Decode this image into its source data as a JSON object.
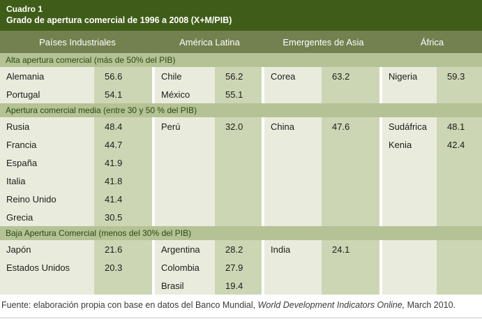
{
  "table_label": "Cuadro 1",
  "colors": {
    "title_band": "#3f5d18",
    "column_header": "#72814f",
    "section_band": "#b4c295",
    "name_cell": "#e9ecdc",
    "value_cell": "#cdd6b4",
    "section_text": "#2b4a10"
  },
  "chart_data": {
    "type": "table",
    "title": "Grado de apertura comercial de 1996 a 2008 (X+M/PIB)",
    "columns": [
      "Países Industriales",
      "América Latina",
      "Emergentes de Asia",
      "África"
    ],
    "sections": [
      {
        "label": "Alta apertura comercial (más de 50% del PIB)",
        "rows": [
          [
            "Alemania",
            "56.6",
            "Chile",
            "56.2",
            "Corea",
            "63.2",
            "Nigeria",
            "59.3"
          ],
          [
            "Portugal",
            "54.1",
            "México",
            "55.1",
            "",
            "",
            "",
            ""
          ]
        ]
      },
      {
        "label": "Apertura comercial media (entre 30 y 50 % del PIB)",
        "rows": [
          [
            "Rusia",
            "48.4",
            "Perú",
            "32.0",
            "China",
            "47.6",
            "Sudáfrica",
            "48.1"
          ],
          [
            "Francia",
            "44.7",
            "",
            "",
            "",
            "",
            "Kenia",
            "42.4"
          ],
          [
            "España",
            "41.9",
            "",
            "",
            "",
            "",
            "",
            ""
          ],
          [
            "Italia",
            "41.8",
            "",
            "",
            "",
            "",
            "",
            ""
          ],
          [
            "Reino Unido",
            "41.4",
            "",
            "",
            "",
            "",
            "",
            ""
          ],
          [
            "Grecia",
            "30.5",
            "",
            "",
            "",
            "",
            "",
            ""
          ]
        ]
      },
      {
        "label": "Baja Apertura Comercial (menos del 30% del PIB)",
        "rows": [
          [
            "Japón",
            "21.6",
            "Argentina",
            "28.2",
            "India",
            "24.1",
            "",
            ""
          ],
          [
            "Estados Unidos",
            "20.3",
            "Colombia",
            "27.9",
            "",
            "",
            "",
            ""
          ],
          [
            "",
            "",
            "Brasil",
            "19.4",
            "",
            "",
            "",
            ""
          ]
        ]
      }
    ]
  },
  "footer": {
    "prefix": "Fuente: elaboración propia con base en datos del Banco Mundial, ",
    "italic": "World Development Indicators Online,",
    "suffix": " March 2010."
  }
}
